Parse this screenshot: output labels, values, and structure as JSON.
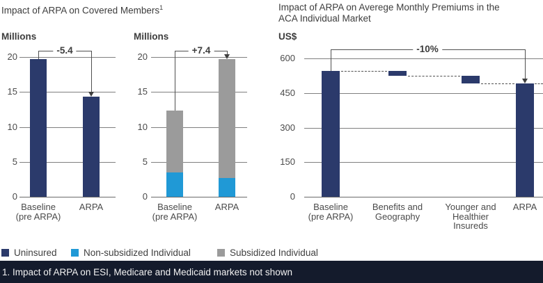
{
  "titles": {
    "left": "Impact of ARPA on Covered Members",
    "left_marker": "1",
    "right_line1": "Impact of ARPA on Averege Monthly Premiums in the",
    "right_line2": "ACA Individual Market"
  },
  "chart_data": [
    {
      "id": "covered-members",
      "type": "bar",
      "unit_label": "Millions",
      "ylim": [
        0,
        20
      ],
      "yticks": [
        0,
        5,
        10,
        15,
        20
      ],
      "categories": [
        [
          "Baseline",
          "(pre ARPA)"
        ],
        [
          "ARPA"
        ]
      ],
      "series": [
        {
          "name": "Uninsured",
          "color_key": "navy",
          "values": [
            19.7,
            14.3
          ]
        }
      ],
      "annotation": {
        "label": "-5.4",
        "from": 0,
        "to": 1
      }
    },
    {
      "id": "individual-market-members",
      "type": "stacked-bar",
      "unit_label": "Millions",
      "ylim": [
        0,
        20
      ],
      "yticks": [
        0,
        5,
        10,
        15,
        20
      ],
      "categories": [
        [
          "Baseline",
          "(pre ARPA)"
        ],
        [
          "ARPA"
        ]
      ],
      "series": [
        {
          "name": "Non-subsidized Individual",
          "color_key": "cyan",
          "values": [
            3.5,
            2.7
          ]
        },
        {
          "name": "Subsidized Individual",
          "color_key": "gray",
          "values": [
            8.8,
            17.0
          ]
        }
      ],
      "annotation": {
        "label": "+7.4",
        "from": 0,
        "to": 1
      }
    },
    {
      "id": "premiums-waterfall",
      "type": "waterfall",
      "unit_label": "US$",
      "ylim": [
        0,
        600
      ],
      "yticks": [
        0,
        150,
        300,
        450,
        600
      ],
      "categories": [
        [
          "Baseline",
          "(pre ARPA)"
        ],
        [
          "Benefits and",
          "Geography"
        ],
        [
          "Younger and",
          "Healthier",
          "Insureds"
        ],
        [
          "ARPA"
        ]
      ],
      "bars": [
        {
          "start": 0,
          "end": 545
        },
        {
          "start": 545,
          "end": 525
        },
        {
          "start": 525,
          "end": 490
        },
        {
          "start": 0,
          "end": 490
        }
      ],
      "annotation": {
        "label": "-10%",
        "from": 0,
        "to": 3
      }
    }
  ],
  "legend": [
    {
      "label": "Uninsured",
      "color_key": "navy"
    },
    {
      "label": "Non-subsidized Individual",
      "color_key": "cyan"
    },
    {
      "label": "Subsidized Individual",
      "color_key": "gray"
    }
  ],
  "footnote": "1. Impact of ARPA on ESI, Medicare and Medicaid markets not shown",
  "colors": {
    "navy": "#2b3a6b",
    "cyan": "#2099d6",
    "gray": "#9b9b9b",
    "footer_bg": "#141b2c",
    "footer_text": "#f2f2f2"
  }
}
